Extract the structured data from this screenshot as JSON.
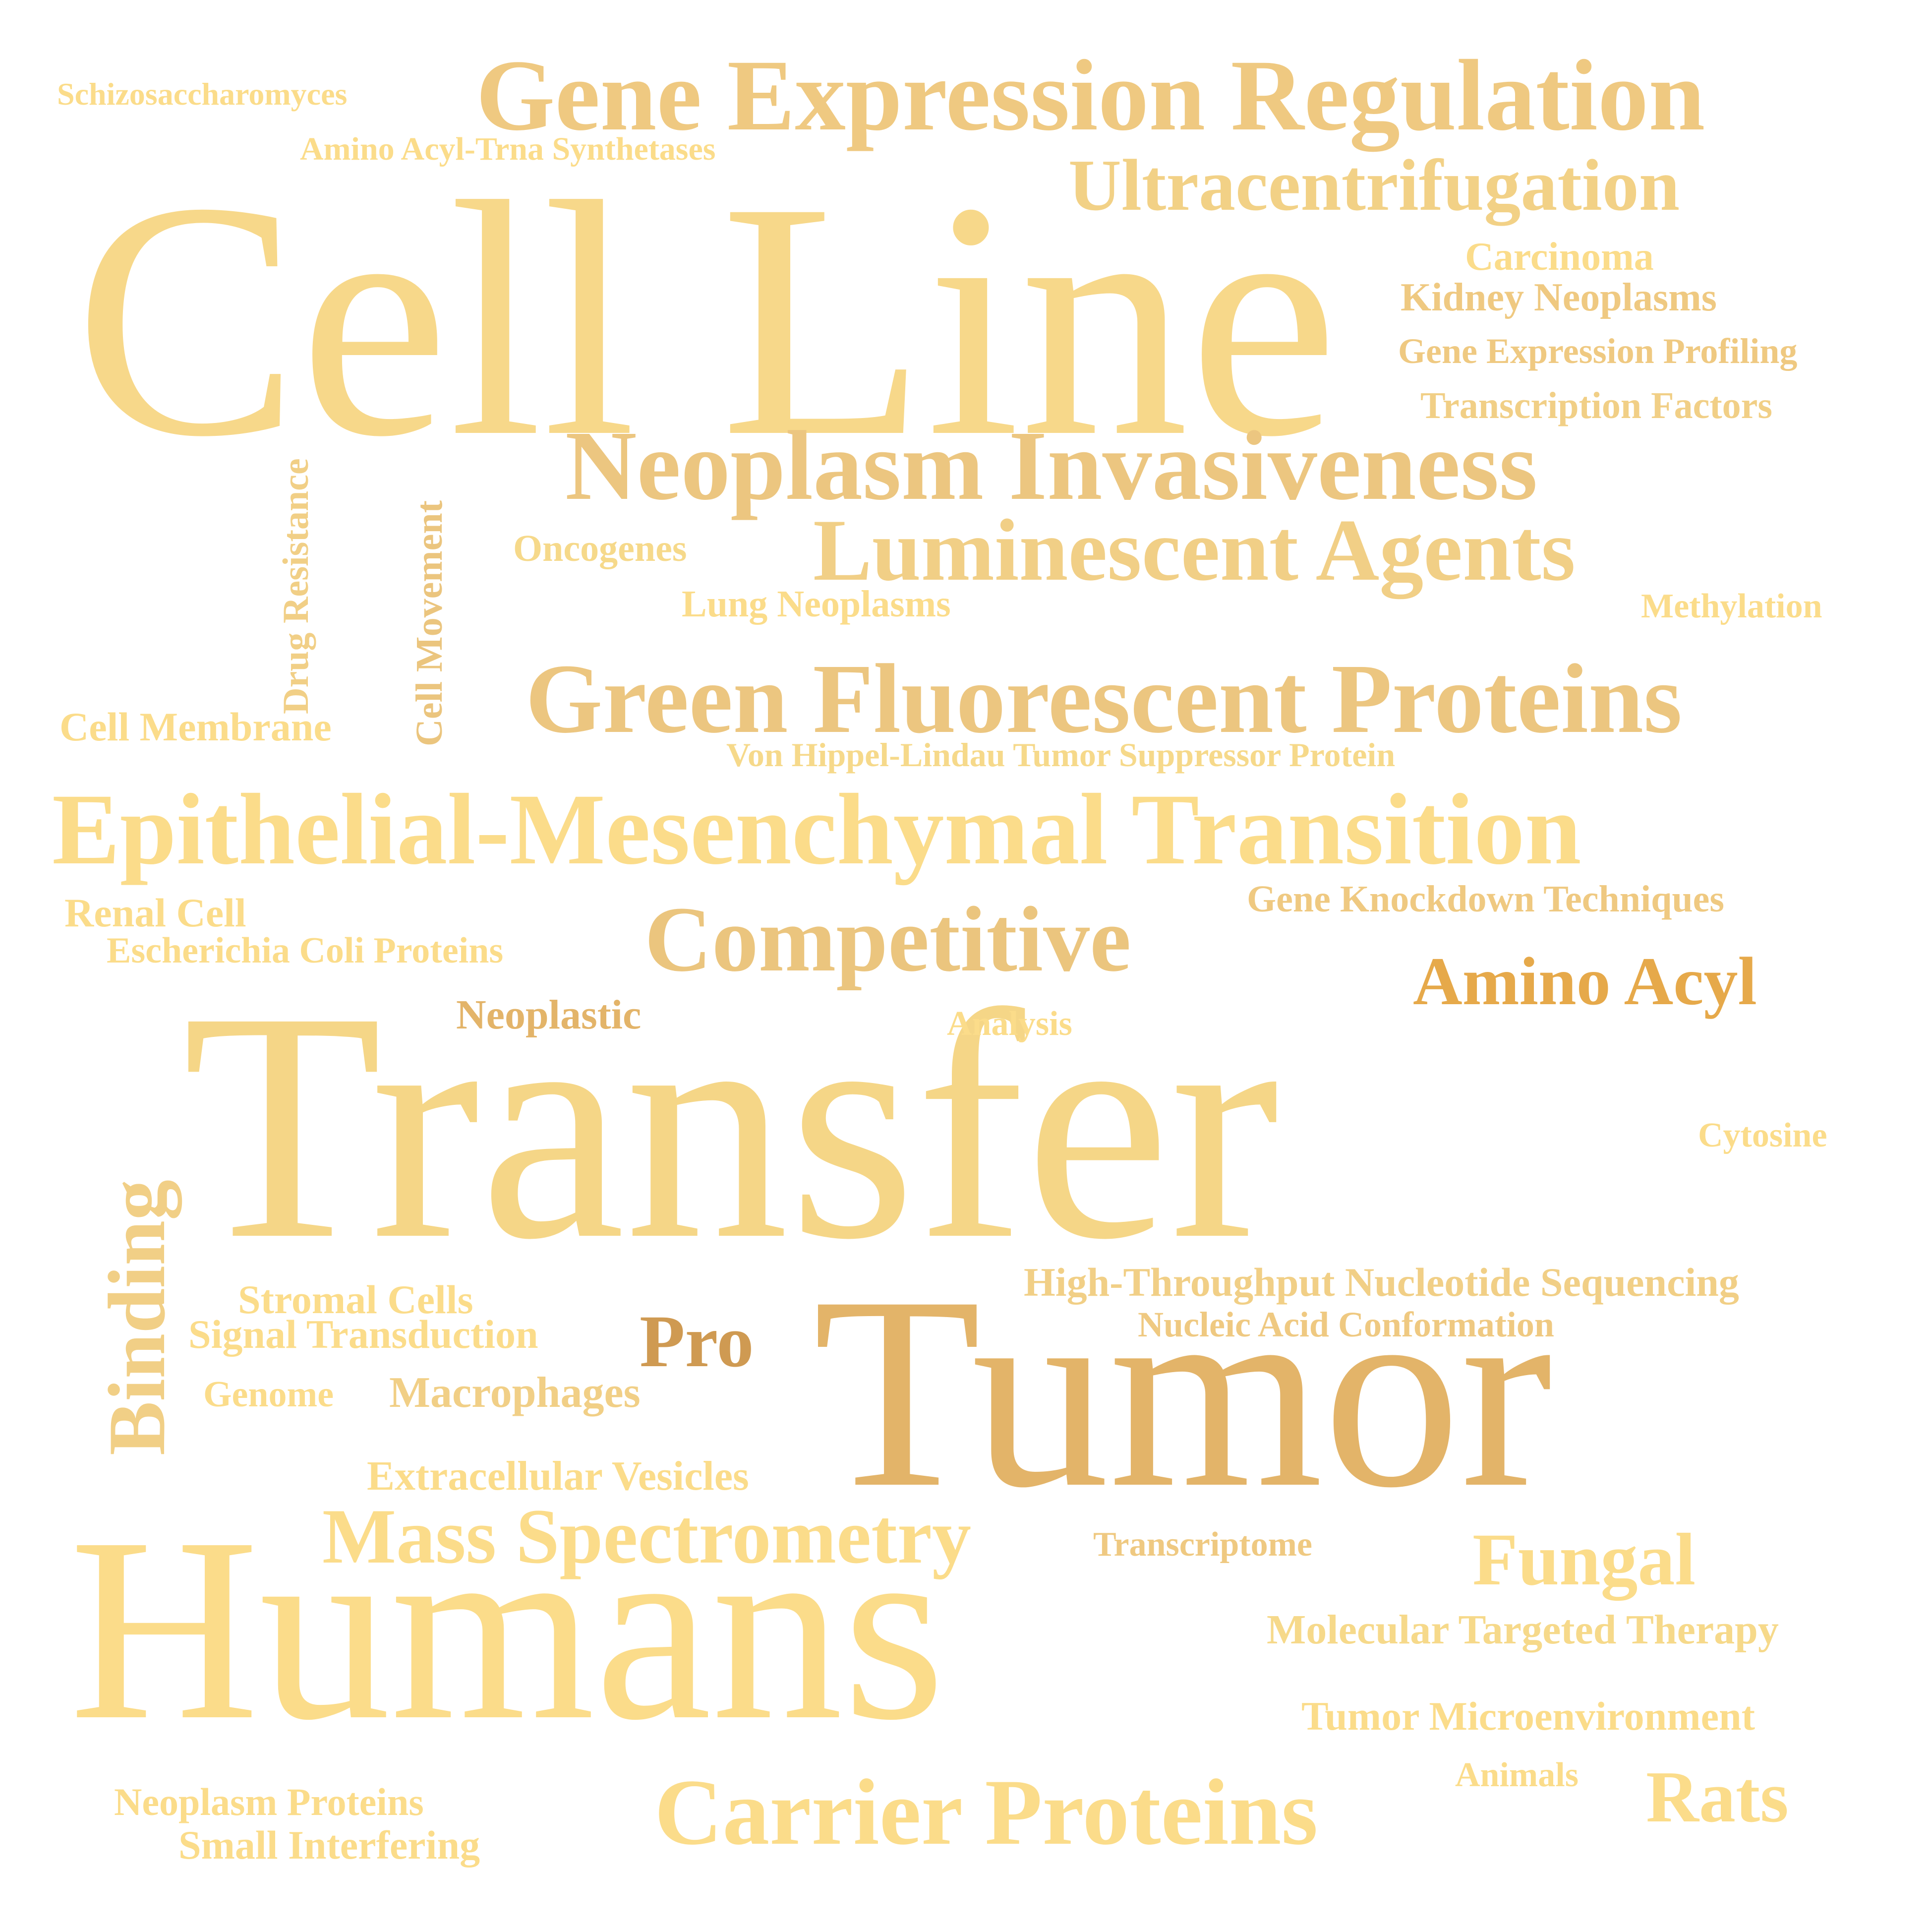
{
  "colors": {
    "background": "#ffffff",
    "light": "#fbdc8a",
    "pale": "#f6d98a",
    "sand": "#f1cf86",
    "tan": "#ecc680",
    "gold": "#e3b469",
    "amber": "#e6a94a",
    "brown": "#cf9a52"
  },
  "words": [
    "Cell Line",
    "Transfer",
    "Tumor",
    "Humans",
    "Gene Expression Regulation",
    "Neoplasm Invasiveness",
    "Luminescent Agents",
    "Green Fluorescent Proteins",
    "Epithelial-Mesenchymal Transition",
    "Ultracentrifugation",
    "Competitive",
    "Mass Spectrometry",
    "Carrier Proteins",
    "Binding",
    "Amino Acyl",
    "Pro",
    "Fungal",
    "Rats",
    "Schizosaccharomyces",
    "Amino Acyl-Trna Synthetases",
    "Carcinoma",
    "Kidney Neoplasms",
    "Gene Expression Profiling",
    "Transcription Factors",
    "Oncogenes",
    "Lung Neoplasms",
    "Methylation",
    "Drug Resistance",
    "Cell Movement",
    "Cell Membrane",
    "Von Hippel-Lindau Tumor Suppressor Protein",
    "Renal Cell",
    "Escherichia Coli Proteins",
    "Gene Knockdown Techniques",
    "Neoplastic",
    "Analysis",
    "Cytosine",
    "High-Throughput Nucleotide Sequencing",
    "Nucleic Acid Conformation",
    "Stromal Cells",
    "Signal Transduction",
    "Genome",
    "Macrophages",
    "Extracellular Vesicles",
    "Transcriptome",
    "Molecular Targeted Therapy",
    "Tumor Microenvironment",
    "Animals",
    "Neoplasm Proteins",
    "Small Interfering"
  ]
}
